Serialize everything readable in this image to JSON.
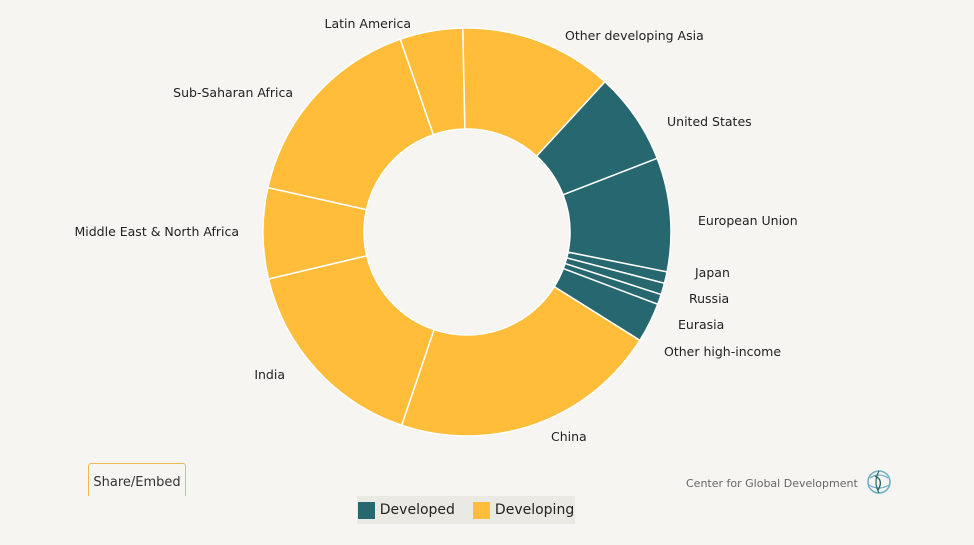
{
  "chart_data": {
    "type": "pie",
    "donut": true,
    "slices": [
      {
        "label": "Other developing Asia",
        "value": 12.0,
        "group": "Developing"
      },
      {
        "label": "United States",
        "value": 7.2,
        "group": "Developed"
      },
      {
        "label": "European Union",
        "value": 8.9,
        "group": "Developed"
      },
      {
        "label": "Japan",
        "value": 0.9,
        "group": "Developed"
      },
      {
        "label": "Russia",
        "value": 0.9,
        "group": "Developed"
      },
      {
        "label": "Eurasia",
        "value": 0.8,
        "group": "Developed"
      },
      {
        "label": "Other high-income",
        "value": 3.1,
        "group": "Developed"
      },
      {
        "label": "China",
        "value": 21.0,
        "group": "Developing"
      },
      {
        "label": "India",
        "value": 15.9,
        "group": "Developing"
      },
      {
        "label": "Middle East & North Africa",
        "value": 7.1,
        "group": "Developing"
      },
      {
        "label": "Sub-Saharan Africa",
        "value": 16.0,
        "group": "Developing"
      },
      {
        "label": "Latin America",
        "value": 4.9,
        "group": "Developing"
      }
    ],
    "legend": [
      {
        "name": "Developed",
        "color": "#27676f"
      },
      {
        "name": "Developing",
        "color": "#ffbd3a"
      }
    ],
    "legend_placement": "bottom"
  },
  "share_button": {
    "label": "Share/Embed"
  },
  "credit": {
    "text": "Center for Global Development",
    "icon": "globe-logo-icon"
  }
}
